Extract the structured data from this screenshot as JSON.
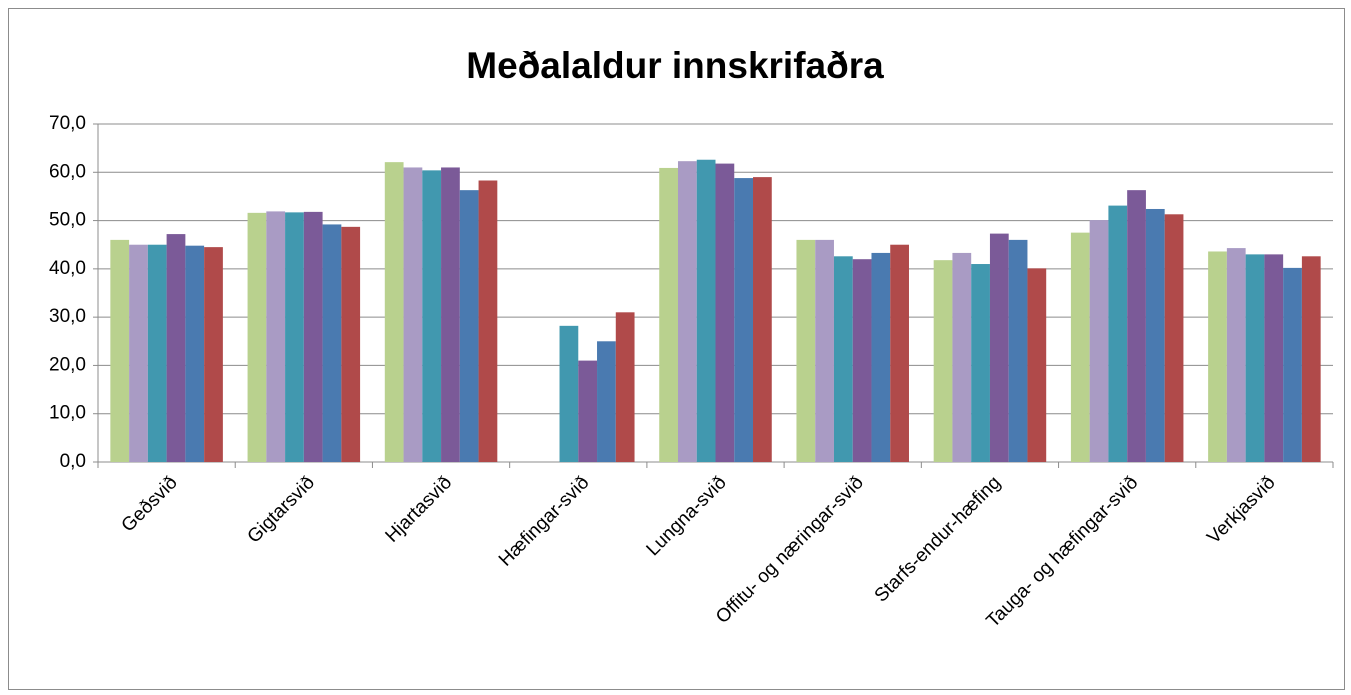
{
  "chart_data": {
    "type": "bar",
    "title": "Meðalaldur innskrifaðra",
    "categories": [
      "Geðsvið",
      "Gigtarsvið",
      "Hjartasvið",
      "Hæfingar-svið",
      "Lungna-svið",
      "Offitu- og næringar-svið",
      "Starfs-endur-hæfing",
      "Tauga- og hæfingar-svið",
      "Verkjasvið"
    ],
    "series": [
      {
        "color": "#b9d18e",
        "values": [
          46.0,
          51.6,
          62.1,
          null,
          60.9,
          46.0,
          41.8,
          47.5,
          43.6
        ]
      },
      {
        "color": "#a99bc4",
        "values": [
          45.0,
          51.9,
          61.0,
          null,
          62.3,
          46.0,
          43.3,
          50.1,
          44.3
        ]
      },
      {
        "color": "#4198af",
        "values": [
          45.0,
          51.7,
          60.4,
          28.2,
          62.6,
          42.6,
          41.0,
          53.1,
          43.0
        ]
      },
      {
        "color": "#7b5a98",
        "values": [
          47.2,
          51.8,
          61.0,
          21.0,
          61.8,
          42.0,
          47.3,
          56.3,
          43.0
        ]
      },
      {
        "color": "#4a7ab0",
        "values": [
          44.8,
          49.2,
          56.3,
          25.0,
          58.8,
          43.3,
          46.0,
          52.4,
          40.2
        ]
      },
      {
        "color": "#b04a4a",
        "values": [
          44.5,
          48.7,
          58.3,
          31.0,
          59.0,
          45.0,
          40.1,
          51.3,
          42.6
        ]
      }
    ],
    "ylim": [
      0,
      70
    ],
    "yticks": [
      {
        "value": 0,
        "label": "0,0"
      },
      {
        "value": 10,
        "label": "10,0"
      },
      {
        "value": 20,
        "label": "20,0"
      },
      {
        "value": 30,
        "label": "30,0"
      },
      {
        "value": 40,
        "label": "40,0"
      },
      {
        "value": 50,
        "label": "50,0"
      },
      {
        "value": 60,
        "label": "60,0"
      },
      {
        "value": 70,
        "label": "70,0"
      }
    ],
    "grid": true
  }
}
